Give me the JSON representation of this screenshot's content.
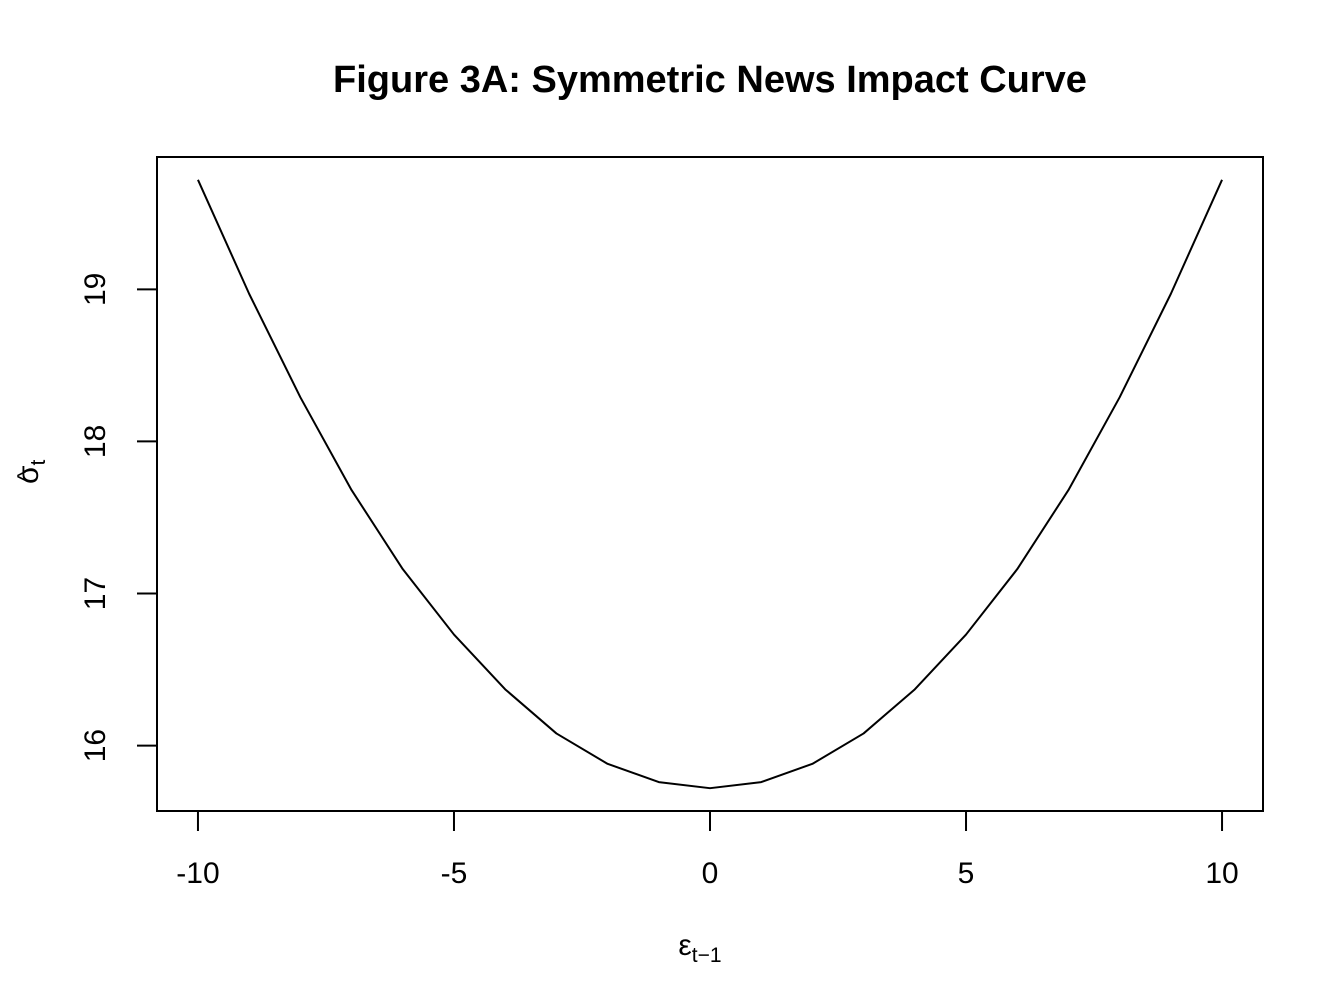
{
  "chart_data": {
    "type": "line",
    "title": "Figure 3A: Symmetric News Impact Curve",
    "xlabel": {
      "symbol": "ε",
      "subscript": "t−1"
    },
    "ylabel": {
      "symbol": "σ",
      "accent": "^",
      "subscript": "t"
    },
    "xlim": [
      -10.8,
      10.8
    ],
    "ylim": [
      15.57,
      19.87
    ],
    "x_ticks": [
      -10,
      -5,
      0,
      5,
      10
    ],
    "x_tick_labels": [
      "-10",
      "-5",
      "0",
      "5",
      "10"
    ],
    "y_ticks": [
      16,
      17,
      18,
      19
    ],
    "y_tick_labels": [
      "16",
      "17",
      "18",
      "19"
    ],
    "grid": false,
    "legend": "none",
    "series": [
      {
        "color": "#000000",
        "x": [
          -10,
          -9,
          -8,
          -7,
          -6,
          -5,
          -4,
          -3,
          -2,
          -1,
          0,
          1,
          2,
          3,
          4,
          5,
          6,
          7,
          8,
          9,
          10
        ],
        "y": [
          19.72,
          18.97,
          18.29,
          17.68,
          17.16,
          16.73,
          16.37,
          16.08,
          15.88,
          15.76,
          15.72,
          15.76,
          15.88,
          16.08,
          16.37,
          16.73,
          17.16,
          17.68,
          18.29,
          18.97,
          19.72
        ]
      }
    ]
  }
}
